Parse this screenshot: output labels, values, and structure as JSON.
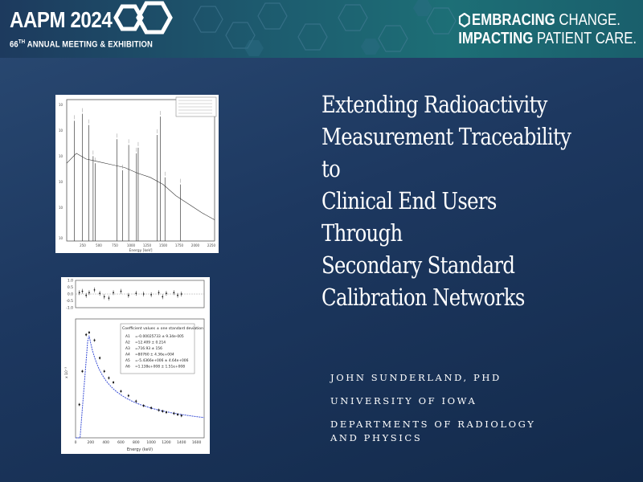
{
  "banner": {
    "conference": "AAPM 2024",
    "subtitle_ordinal": "66",
    "subtitle_sup": "TH",
    "subtitle_rest": "ANNUAL MEETING & EXHIBITION",
    "slogan_bold_1": "EMBRACING",
    "slogan_light_1": "CHANGE.",
    "slogan_bold_2": "IMPACTING",
    "slogan_light_2": "PATIENT CARE."
  },
  "slide": {
    "title": "Extending Radioactivity\nMeasurement Traceability to\nClinical End Users Through\nSecondary Standard\nCalibration Networks",
    "author_name": "JOHN SUNDERLAND, PHD",
    "affiliation": "UNIVERSITY OF IOWA",
    "department_line1": "DEPARTMENTS OF RADIOLOGY",
    "department_line2": "AND PHYSICS"
  },
  "colors": {
    "background": "#1d3860",
    "banner": "#1d5a6e",
    "text": "#ffffff",
    "fit_curve": "#3a4fd6"
  },
  "chart_data": [
    {
      "type": "line",
      "description_of_content": "gamma-ray spectrum with labeled peaks",
      "xlabel": "Energy [keV]",
      "x_ticks": [
        "250",
        "500",
        "750",
        "1000",
        "1250",
        "1500",
        "1750",
        "2000",
        "2250"
      ],
      "peaks_x": [
        120,
        245,
        344,
        411,
        444,
        779,
        867,
        964,
        1085,
        1112,
        1408,
        1457,
        1528,
        1770
      ],
      "baseline_x": [
        0,
        150,
        300,
        500,
        700,
        900,
        1100,
        1300,
        1500,
        1700,
        1900,
        2100,
        2300
      ],
      "baseline_y": [
        0.55,
        0.62,
        0.58,
        0.56,
        0.54,
        0.52,
        0.48,
        0.45,
        0.4,
        0.32,
        0.26,
        0.2,
        0.15
      ],
      "xlim": [
        0,
        2300
      ],
      "legend": "top-right"
    },
    {
      "type": "scatter",
      "xlabel": "Energy (keV)",
      "x_ticks": [
        "0",
        "200",
        "400",
        "600",
        "800",
        "1000",
        "1200",
        "1400",
        "1600"
      ],
      "residual_ticks": [
        "1.0",
        "0.5",
        "0.0",
        "-0.5",
        "-1.0"
      ],
      "legend_title": "Coefficient values ± one standard deviation",
      "coefficients": [
        {
          "name": "A1",
          "value": "=-0.00025733 ± 9.34e-005"
        },
        {
          "name": "A2",
          "value": "=12.409 ± 0.214"
        },
        {
          "name": "A3",
          "value": "=716.93 ± 156"
        },
        {
          "name": "A4",
          "value": "=80760 ± 4.36e+004"
        },
        {
          "name": "A5",
          "value": "=-5.4366e+006 ± 4.64e+006"
        },
        {
          "name": "A6",
          "value": "=1.138e+008 ± 1.51e+008"
        }
      ],
      "points_x": [
        50,
        90,
        140,
        180,
        250,
        320,
        380,
        440,
        500,
        600,
        700,
        800,
        900,
        1000,
        1100,
        1150,
        1200,
        1300,
        1350,
        1400
      ],
      "points_y": [
        0.3,
        0.6,
        0.93,
        0.95,
        0.88,
        0.72,
        0.6,
        0.54,
        0.5,
        0.42,
        0.38,
        0.33,
        0.29,
        0.27,
        0.25,
        0.24,
        0.23,
        0.22,
        0.21,
        0.2
      ],
      "residuals": [
        0.1,
        0.2,
        -0.1,
        0.1,
        0.3,
        0.05,
        -0.2,
        -0.3,
        0.1,
        0.2,
        -0.1,
        0.05,
        0.0,
        -0.05,
        0.1,
        -0.2,
        0.05,
        0.1,
        -0.1,
        0.0
      ],
      "xlim": [
        0,
        1700
      ],
      "legend": "top-right"
    }
  ]
}
